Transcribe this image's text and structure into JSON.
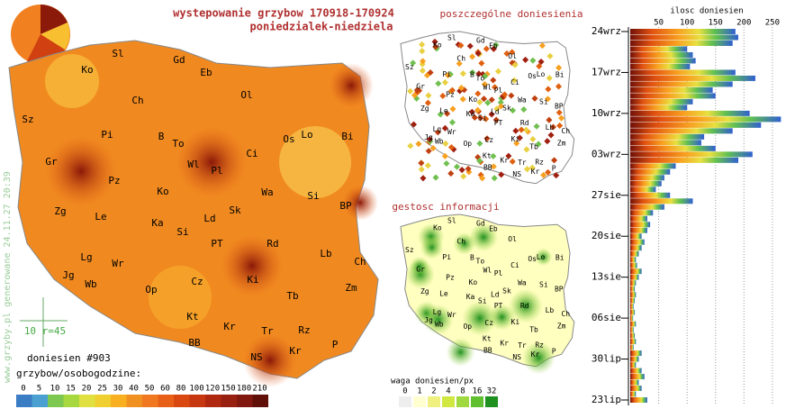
{
  "header": {
    "title": "wystepowanie grzybow 170918-170924",
    "subtitle": "poniedzialek-niedziela",
    "side_note": "www.grzyby.pl generowane 24.11.27 20:39"
  },
  "map": {
    "labels": [
      "Ko",
      "Sl",
      "Gd",
      "Eb",
      "Ch",
      "Ol",
      "Sz",
      "Pi",
      "B",
      "To",
      "Os",
      "Lo",
      "Bi",
      "Gr",
      "Wl",
      "Pl",
      "Ci",
      "Pz",
      "Ko",
      "Wa",
      "Si",
      "Zg",
      "Le",
      "Ka",
      "Ld",
      "Sk",
      "BP",
      "Si",
      "PT",
      "Rd",
      "Lg",
      "Wr",
      "Lb",
      "Ch",
      "Jg",
      "Wb",
      "Cz",
      "Ki",
      "Op",
      "Zm",
      "Tb",
      "Kt",
      "Kr",
      "Tr",
      "Rz",
      "BB",
      "Kr",
      "P",
      "NS"
    ],
    "scale_note": "10 r=45",
    "count_note": "doniesien #903"
  },
  "small_maps": {
    "top_title": "poszczególne doniesienia",
    "bottom_title": "gestosc informacji"
  },
  "legend": {
    "title": "grzybow/osobogodzine:",
    "values": [
      0,
      5,
      10,
      15,
      20,
      25,
      30,
      40,
      50,
      60,
      80,
      100,
      120,
      150,
      180,
      210
    ],
    "colors": [
      "#3b7dc4",
      "#4aa0d0",
      "#7dc850",
      "#a8d840",
      "#e0e040",
      "#f0d030",
      "#f8b020",
      "#f09020",
      "#f07820",
      "#e86018",
      "#d84810",
      "#c83810",
      "#b02810",
      "#982010",
      "#801810",
      "#601008"
    ]
  },
  "density_legend": {
    "title": "waga doniesien/px",
    "values": [
      0,
      1,
      2,
      4,
      8,
      16,
      32
    ],
    "colors": [
      "#eeeeee",
      "#ffffd0",
      "#f0f080",
      "#d0e840",
      "#a0d840",
      "#60c030",
      "#209020"
    ]
  },
  "chart_data": {
    "type": "bar",
    "title": "ilosc doniesien",
    "categories": [
      "24wrz",
      null,
      null,
      null,
      null,
      null,
      null,
      "17wrz",
      null,
      null,
      null,
      null,
      null,
      null,
      "10wrz",
      null,
      null,
      null,
      null,
      null,
      null,
      "03wrz",
      null,
      null,
      null,
      null,
      null,
      null,
      "27sie",
      null,
      null,
      null,
      null,
      null,
      null,
      "20sie",
      null,
      null,
      null,
      null,
      null,
      null,
      "13sie",
      null,
      null,
      null,
      null,
      null,
      null,
      "06sie",
      null,
      null,
      null,
      null,
      null,
      null,
      "30lip",
      null,
      null,
      null,
      null,
      null,
      null,
      "23lip"
    ],
    "values": [
      185,
      190,
      180,
      100,
      110,
      115,
      105,
      185,
      220,
      180,
      145,
      150,
      110,
      100,
      210,
      265,
      230,
      180,
      130,
      125,
      150,
      215,
      190,
      80,
      70,
      60,
      55,
      45,
      70,
      110,
      60,
      40,
      30,
      35,
      30,
      20,
      25,
      20,
      15,
      10,
      12,
      20,
      15,
      10,
      8,
      10,
      8,
      6,
      8,
      5,
      10,
      6,
      8,
      10,
      6,
      20,
      15,
      10,
      20,
      25,
      15,
      20,
      10,
      30
    ],
    "xlim": [
      0,
      285
    ],
    "xticks": [
      50,
      100,
      150,
      200,
      250
    ]
  }
}
